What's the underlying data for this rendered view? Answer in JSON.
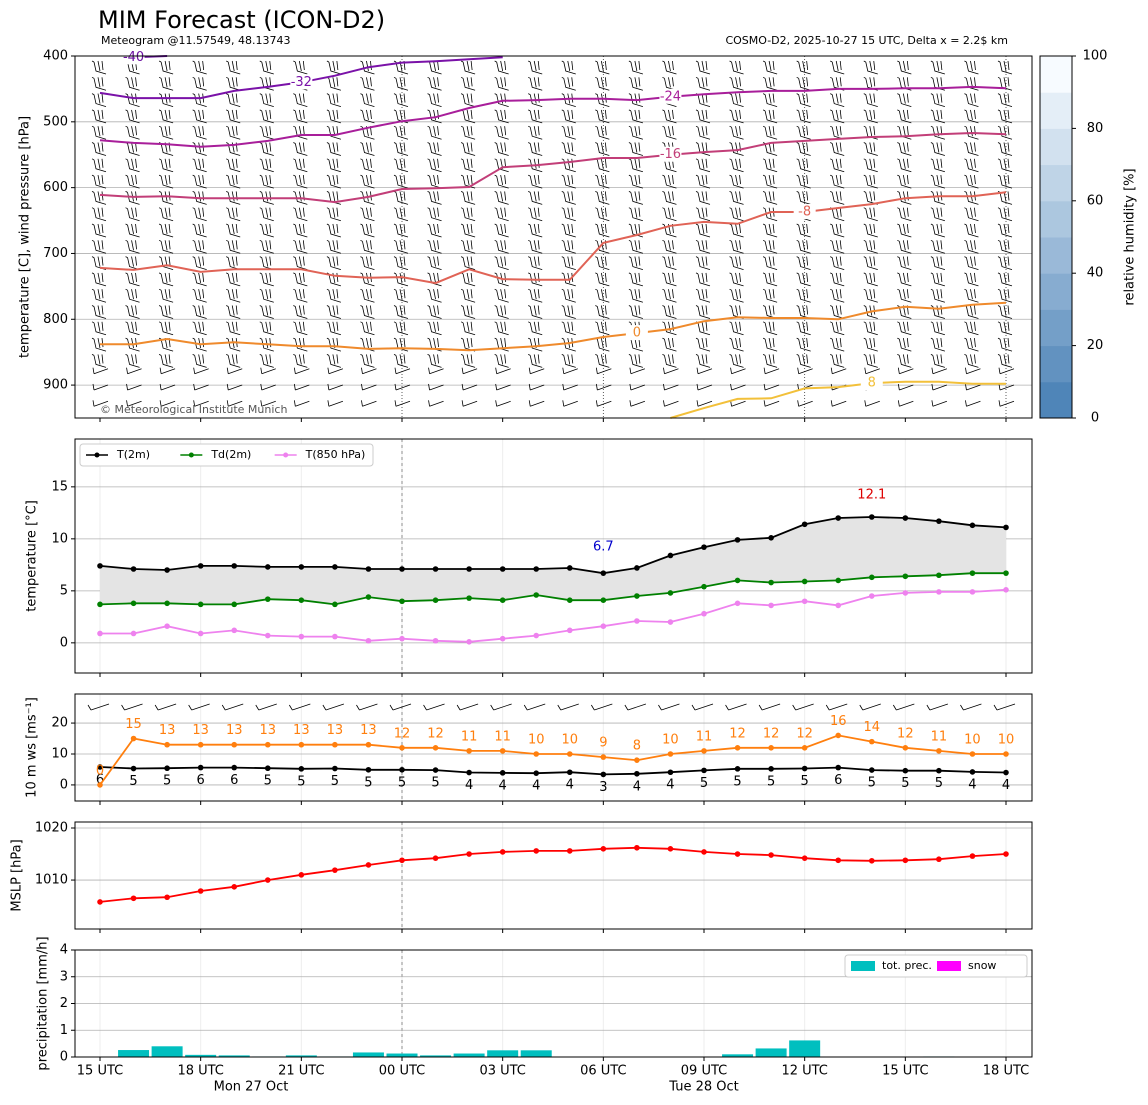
{
  "chart_data": [
    {
      "type": "contour",
      "title": "MIM Forecast (ICON-D2)",
      "subtitle_left": "Meteogram @11.57549, 48.13743",
      "subtitle_right": "COSMO-D2, 2025-10-27 15 UTC, Delta x = 2.2$ km",
      "copyright": "© Meteorological Institute Munich",
      "ylabel": "temperature [C], wind pressure [hPa]",
      "ylim": [
        950,
        400
      ],
      "yticks": [
        400,
        500,
        600,
        700,
        800,
        900
      ],
      "grid": true,
      "series": [
        {
          "name": "-40",
          "color": "#6a0fa0",
          "values": [
            null,
            402,
            400,
            null,
            null,
            null,
            null,
            null,
            null,
            null,
            null,
            null,
            null,
            null,
            null,
            null,
            null,
            null,
            null,
            null,
            null,
            null,
            null,
            null,
            null,
            null,
            null,
            null
          ]
        },
        {
          "name": "-32",
          "color": "#7a12a8",
          "values": [
            456,
            464,
            464,
            464,
            453,
            447,
            440,
            430,
            417,
            410,
            408,
            405,
            402,
            null,
            null,
            null,
            null,
            null,
            null,
            null,
            null,
            null,
            null,
            null,
            null,
            null,
            null,
            null
          ]
        },
        {
          "name": "-24",
          "color": "#a81e9a",
          "values": [
            528,
            532,
            534,
            538,
            535,
            529,
            520,
            520,
            509,
            499,
            493,
            479,
            468,
            467,
            465,
            465,
            467,
            462,
            458,
            455,
            453,
            453,
            450,
            450,
            449,
            449,
            447,
            449
          ]
        },
        {
          "name": "-16",
          "color": "#c23e78",
          "values": [
            611,
            614,
            613,
            616,
            616,
            616,
            616,
            622,
            614,
            602,
            601,
            599,
            569,
            566,
            561,
            555,
            555,
            550,
            546,
            543,
            532,
            529,
            526,
            523,
            522,
            519,
            517,
            519
          ]
        },
        {
          "name": "-8",
          "color": "#e06356",
          "values": [
            722,
            725,
            718,
            728,
            724,
            724,
            724,
            734,
            737,
            736,
            745,
            724,
            739,
            740,
            740,
            684,
            672,
            658,
            652,
            655,
            637,
            637,
            631,
            625,
            616,
            613,
            613,
            607
          ]
        },
        {
          "name": "0",
          "color": "#ef8a2c",
          "values": [
            838,
            838,
            830,
            838,
            835,
            838,
            841,
            841,
            845,
            844,
            845,
            847,
            844,
            841,
            836,
            827,
            821,
            815,
            803,
            797,
            798,
            798,
            800,
            788,
            781,
            784,
            778,
            775
          ]
        },
        {
          "name": "8",
          "color": "#f2c03a",
          "values": [
            null,
            null,
            null,
            null,
            null,
            null,
            null,
            null,
            null,
            null,
            null,
            null,
            null,
            null,
            null,
            null,
            null,
            950,
            935,
            921,
            920,
            905,
            903,
            897,
            895,
            895,
            898,
            898
          ]
        }
      ],
      "colorbar": {
        "label": "relative humidity [%]",
        "lim": [
          0,
          100
        ],
        "ticks": [
          0,
          20,
          40,
          60,
          80,
          100
        ]
      }
    },
    {
      "type": "line",
      "ylabel": "temperature [°C]",
      "ylim": [
        -2.9,
        19.6
      ],
      "yticks": [
        0,
        5,
        10,
        15
      ],
      "grid": true,
      "legend": "upper left",
      "min_label": "6.7",
      "max_label": "12.1",
      "series": [
        {
          "name": "T(2m)",
          "color": "#000000",
          "values": [
            7.4,
            7.1,
            7.0,
            7.4,
            7.4,
            7.3,
            7.3,
            7.3,
            7.1,
            7.1,
            7.1,
            7.1,
            7.1,
            7.1,
            7.2,
            6.7,
            7.2,
            8.4,
            9.2,
            9.9,
            10.1,
            11.4,
            12.0,
            12.1,
            12.0,
            11.7,
            11.3,
            11.1
          ]
        },
        {
          "name": "Td(2m)",
          "color": "#008000",
          "values": [
            3.7,
            3.8,
            3.8,
            3.7,
            3.7,
            4.2,
            4.1,
            3.7,
            4.4,
            4.0,
            4.1,
            4.3,
            4.1,
            4.6,
            4.1,
            4.1,
            4.5,
            4.8,
            5.4,
            6.0,
            5.8,
            5.9,
            6.0,
            6.3,
            6.4,
            6.5,
            6.7,
            6.7
          ]
        },
        {
          "name": "T(850 hPa)",
          "color": "#ee82ee",
          "values": [
            0.9,
            0.9,
            1.6,
            0.9,
            1.2,
            0.7,
            0.6,
            0.6,
            0.2,
            0.4,
            0.2,
            0.1,
            0.4,
            0.7,
            1.2,
            1.6,
            2.1,
            2.0,
            2.8,
            3.8,
            3.6,
            4.0,
            3.6,
            4.5,
            4.8,
            4.9,
            4.9,
            5.1
          ]
        }
      ]
    },
    {
      "type": "line",
      "ylabel": "10 m ws [ms⁻¹]",
      "ylim": [
        -5.2,
        29.4
      ],
      "yticks": [
        0,
        10,
        20
      ],
      "grid": true,
      "series": [
        {
          "color": "#000000",
          "values": [
            5.8,
            5.3,
            5.4,
            5.6,
            5.6,
            5.4,
            5.2,
            5.3,
            4.9,
            4.9,
            4.8,
            4.0,
            3.9,
            3.8,
            4.1,
            3.4,
            3.6,
            4.1,
            4.7,
            5.2,
            5.2,
            5.3,
            5.6,
            4.8,
            4.6,
            4.6,
            4.2,
            4.0
          ],
          "value_labels": [
            "6",
            "5",
            "5",
            "6",
            "6",
            "5",
            "5",
            "5",
            "5",
            "5",
            "5",
            "4",
            "4",
            "4",
            "4",
            "3",
            "4",
            "4",
            "5",
            "5",
            "5",
            "5",
            "6",
            "5",
            "5",
            "5",
            "4",
            "4"
          ]
        },
        {
          "color": "#ff7f0e",
          "values": [
            0,
            15,
            13,
            13,
            13,
            13,
            13,
            13,
            13,
            12,
            12,
            11,
            11,
            10,
            10,
            9,
            8,
            10,
            11,
            12,
            12,
            12,
            16,
            14,
            12,
            11,
            10,
            10
          ],
          "value_labels": [
            "0",
            "15",
            "13",
            "13",
            "13",
            "13",
            "13",
            "13",
            "13",
            "12",
            "12",
            "11",
            "11",
            "10",
            "10",
            "9",
            "8",
            "10",
            "11",
            "12",
            "12",
            "12",
            "16",
            "14",
            "12",
            "11",
            "10",
            "10"
          ]
        }
      ]
    },
    {
      "type": "line",
      "ylabel": "MSLP [hPa]",
      "ylim": [
        1000.6,
        1021.15
      ],
      "yticks": [
        1010,
        1020
      ],
      "grid": true,
      "series": [
        {
          "color": "#ff0000",
          "values": [
            1005.8,
            1006.5,
            1006.7,
            1007.9,
            1008.7,
            1010.0,
            1011.0,
            1011.9,
            1012.9,
            1013.8,
            1014.2,
            1015.0,
            1015.4,
            1015.6,
            1015.6,
            1016.0,
            1016.2,
            1016.0,
            1015.4,
            1015.0,
            1014.8,
            1014.2,
            1013.8,
            1013.7,
            1013.8,
            1014.0,
            1014.6,
            1015.0
          ]
        }
      ]
    },
    {
      "type": "bar",
      "ylabel": "precipitation [mm/h]",
      "ylim": [
        0,
        4
      ],
      "yticks": [
        0,
        1,
        2,
        3,
        4
      ],
      "grid": true,
      "legend": "upper right",
      "categories": [
        "15 UTC",
        null,
        null,
        "18 UTC",
        null,
        null,
        "21 UTC",
        null,
        null,
        "00 UTC",
        null,
        null,
        "03 UTC",
        null,
        null,
        "06 UTC",
        null,
        null,
        "09 UTC",
        null,
        null,
        "12 UTC",
        null,
        null,
        "15 UTC",
        null,
        null,
        "18 UTC"
      ],
      "date_labels": [
        "Mon 27 Oct",
        "Tue 28 Oct"
      ],
      "series": [
        {
          "name": "tot. prec.",
          "color": "#00bfbf",
          "values": [
            0,
            0.26,
            0.4,
            0.08,
            0.06,
            0.02,
            0.06,
            0.02,
            0.17,
            0.13,
            0.06,
            0.13,
            0.25,
            0.25,
            0,
            0,
            0,
            0,
            0,
            0.1,
            0.32,
            0.62,
            0,
            0,
            0,
            0.02,
            0,
            0
          ]
        },
        {
          "name": "snow",
          "color": "#ff00ff",
          "values": [
            0,
            0,
            0,
            0,
            0,
            0,
            0,
            0,
            0,
            0,
            0,
            0,
            0,
            0,
            0,
            0,
            0,
            0,
            0,
            0,
            0,
            0,
            0,
            0,
            0,
            0,
            0,
            0
          ]
        }
      ]
    }
  ]
}
